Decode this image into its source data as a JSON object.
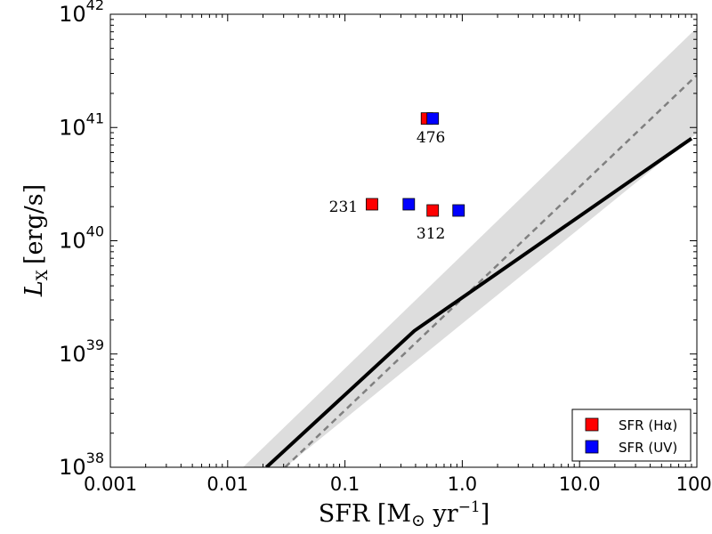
{
  "chart_data": {
    "type": "scatter",
    "x_scale": "log",
    "y_scale": "log",
    "xlim": [
      0.001,
      100
    ],
    "ylim": [
      1e+38,
      1e+42
    ],
    "xlabel": "SFR [M☉ yr⁻¹]",
    "xlabel_parts": {
      "main": "SFR [M",
      "sun": "⊙",
      "unit": " yr",
      "exp": "−1",
      "close": "]"
    },
    "ylabel": "L_x [erg/s]",
    "ylabel_parts": {
      "sym": "L",
      "sub": "X",
      "unit": "[erg/s]"
    },
    "x_ticks": [
      {
        "value": 0.001,
        "label": "0.001"
      },
      {
        "value": 0.01,
        "label": "0.01"
      },
      {
        "value": 0.1,
        "label": "0.1"
      },
      {
        "value": 1,
        "label": "1.0"
      },
      {
        "value": 10,
        "label": "10.0"
      },
      {
        "value": 100,
        "label": "100."
      }
    ],
    "y_ticks": [
      {
        "value": 1e+38,
        "base": "10",
        "exp": "38"
      },
      {
        "value": 1e+39,
        "base": "10",
        "exp": "39"
      },
      {
        "value": 1e+40,
        "base": "10",
        "exp": "40"
      },
      {
        "value": 1e+41,
        "base": "10",
        "exp": "41"
      },
      {
        "value": 1e+42,
        "base": "10",
        "exp": "42"
      }
    ],
    "band": {
      "color": "#dddddd",
      "lower": [
        [
          0.0309,
          1e+38
        ],
        [
          100,
          8.9e+40
        ]
      ],
      "upper": [
        [
          0.0135,
          1e+38
        ],
        [
          100,
          7.6e+41
        ]
      ]
    },
    "dashed_relation": {
      "color": "#808080",
      "points": [
        [
          0.0309,
          1e+38
        ],
        [
          100,
          2.9e+41
        ]
      ]
    },
    "solid_relation": {
      "color": "#000000",
      "points": [
        [
          0.0214,
          1e+38
        ],
        [
          0.39,
          1.6e+39
        ],
        [
          90,
          8e+40
        ]
      ]
    },
    "series": [
      {
        "name": "SFR (Hα)",
        "color": "#ff0000",
        "points": [
          {
            "x": 0.5,
            "y": 1.2e+41
          },
          {
            "x": 0.17,
            "y": 2.1e+40
          },
          {
            "x": 0.56,
            "y": 1.85e+40
          }
        ]
      },
      {
        "name": "SFR (UV)",
        "color": "#0000ff",
        "points": [
          {
            "x": 0.56,
            "y": 1.2e+41
          },
          {
            "x": 0.35,
            "y": 2.1e+40
          },
          {
            "x": 0.93,
            "y": 1.85e+40
          }
        ]
      }
    ],
    "annotations": [
      {
        "text": "476",
        "x": 0.54,
        "y": 7.4e+40
      },
      {
        "text": "231",
        "x": 0.097,
        "y": 1.8e+40
      },
      {
        "text": "312",
        "x": 0.54,
        "y": 1.05e+40
      }
    ],
    "legend": {
      "position": "lower-right",
      "entries": [
        {
          "label": "SFR (Hα)",
          "color": "#ff0000"
        },
        {
          "label": "SFR (UV)",
          "color": "#0000ff"
        }
      ]
    }
  }
}
